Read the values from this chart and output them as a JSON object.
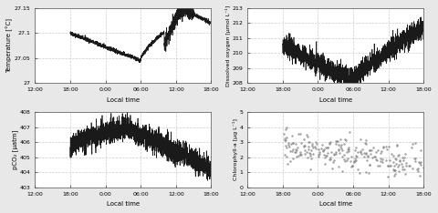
{
  "background_color": "#e8e8e8",
  "subplot_bg": "#ffffff",
  "x_ticks_labels": [
    "12:00",
    "18:00",
    "0:00",
    "06:00",
    "12:00",
    "18:00"
  ],
  "x_ticks_pos": [
    0,
    6,
    12,
    18,
    24,
    30
  ],
  "xlabel": "Local time",
  "temp": {
    "ylabel": "Temperature [°C]",
    "ylim": [
      27.0,
      27.15
    ],
    "yticks": [
      27.0,
      27.05,
      27.1,
      27.15
    ],
    "ytick_labels": [
      "27",
      "27.05",
      "27.1",
      "27.15"
    ]
  },
  "do": {
    "ylabel": "Dissolved oxygen [μmol L⁻¹]",
    "ylim": [
      208.0,
      213.0
    ],
    "yticks": [
      208,
      209,
      210,
      211,
      212,
      213
    ],
    "ytick_labels": [
      "208",
      "209",
      "210",
      "211",
      "212",
      "213"
    ]
  },
  "pco2": {
    "ylabel": "pCO₂ [μatm]",
    "ylim": [
      403,
      408
    ],
    "yticks": [
      403,
      404,
      405,
      406,
      407,
      408
    ],
    "ytick_labels": [
      "403",
      "404",
      "405",
      "406",
      "407",
      "408"
    ]
  },
  "chl": {
    "ylabel": "Chlorophyll-a [μg L⁻¹]",
    "ylim": [
      0,
      5
    ],
    "yticks": [
      0,
      1,
      2,
      3,
      4,
      5
    ],
    "ytick_labels": [
      "0",
      "1",
      "2",
      "3",
      "4",
      "5"
    ]
  },
  "line_color": "#1a1a1a",
  "scatter_color": "#888888",
  "grid_color": "#cccccc",
  "t_start": 6,
  "t_end": 30,
  "t_full_start": 0,
  "t_full_end": 30
}
